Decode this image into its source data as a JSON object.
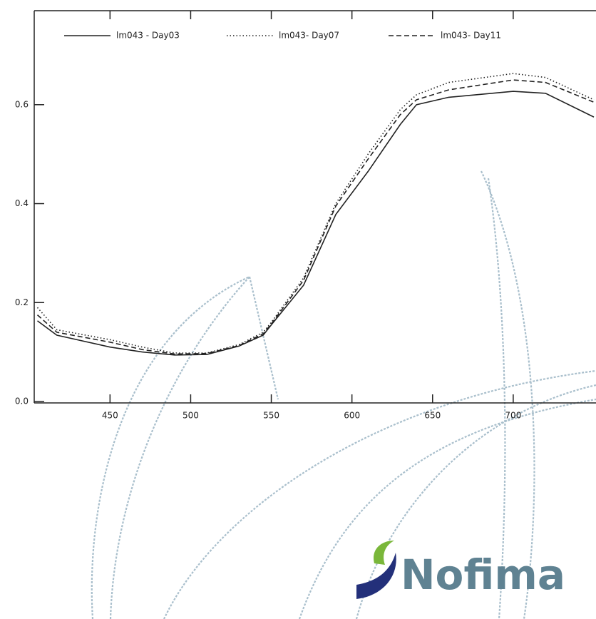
{
  "chart_data": {
    "type": "line",
    "x": [
      405,
      417,
      450,
      470,
      490,
      510,
      530,
      545,
      550,
      570,
      590,
      610,
      630,
      640,
      660,
      700,
      720,
      750
    ],
    "series": [
      {
        "name": "lm043 - Day03",
        "color": "#222222",
        "style": "solid",
        "values": [
          0.163,
          0.134,
          0.11,
          0.1,
          0.094,
          0.095,
          0.112,
          0.134,
          0.155,
          0.235,
          0.378,
          0.465,
          0.56,
          0.6,
          0.615,
          0.627,
          0.623,
          0.575
        ]
      },
      {
        "name": "lm043- Day07",
        "color": "#222222",
        "style": "dotted",
        "values": [
          0.19,
          0.145,
          0.125,
          0.11,
          0.098,
          0.098,
          0.115,
          0.14,
          0.16,
          0.25,
          0.4,
          0.5,
          0.59,
          0.62,
          0.645,
          0.663,
          0.655,
          0.61
        ]
      },
      {
        "name": "lm043- Day11",
        "color": "#222222",
        "style": "dashed",
        "values": [
          0.175,
          0.14,
          0.12,
          0.105,
          0.096,
          0.097,
          0.113,
          0.137,
          0.157,
          0.245,
          0.395,
          0.49,
          0.58,
          0.61,
          0.63,
          0.65,
          0.645,
          0.605
        ]
      }
    ],
    "xlim": [
      403,
      750
    ],
    "ylim": [
      0,
      0.79
    ],
    "xticks": [
      450,
      500,
      550,
      600,
      650,
      700
    ],
    "yticks": [
      {
        "value": 0,
        "label": "0.0"
      },
      0.2,
      0.4,
      0.6
    ],
    "legend": "top"
  },
  "logo_text": "Nofima"
}
